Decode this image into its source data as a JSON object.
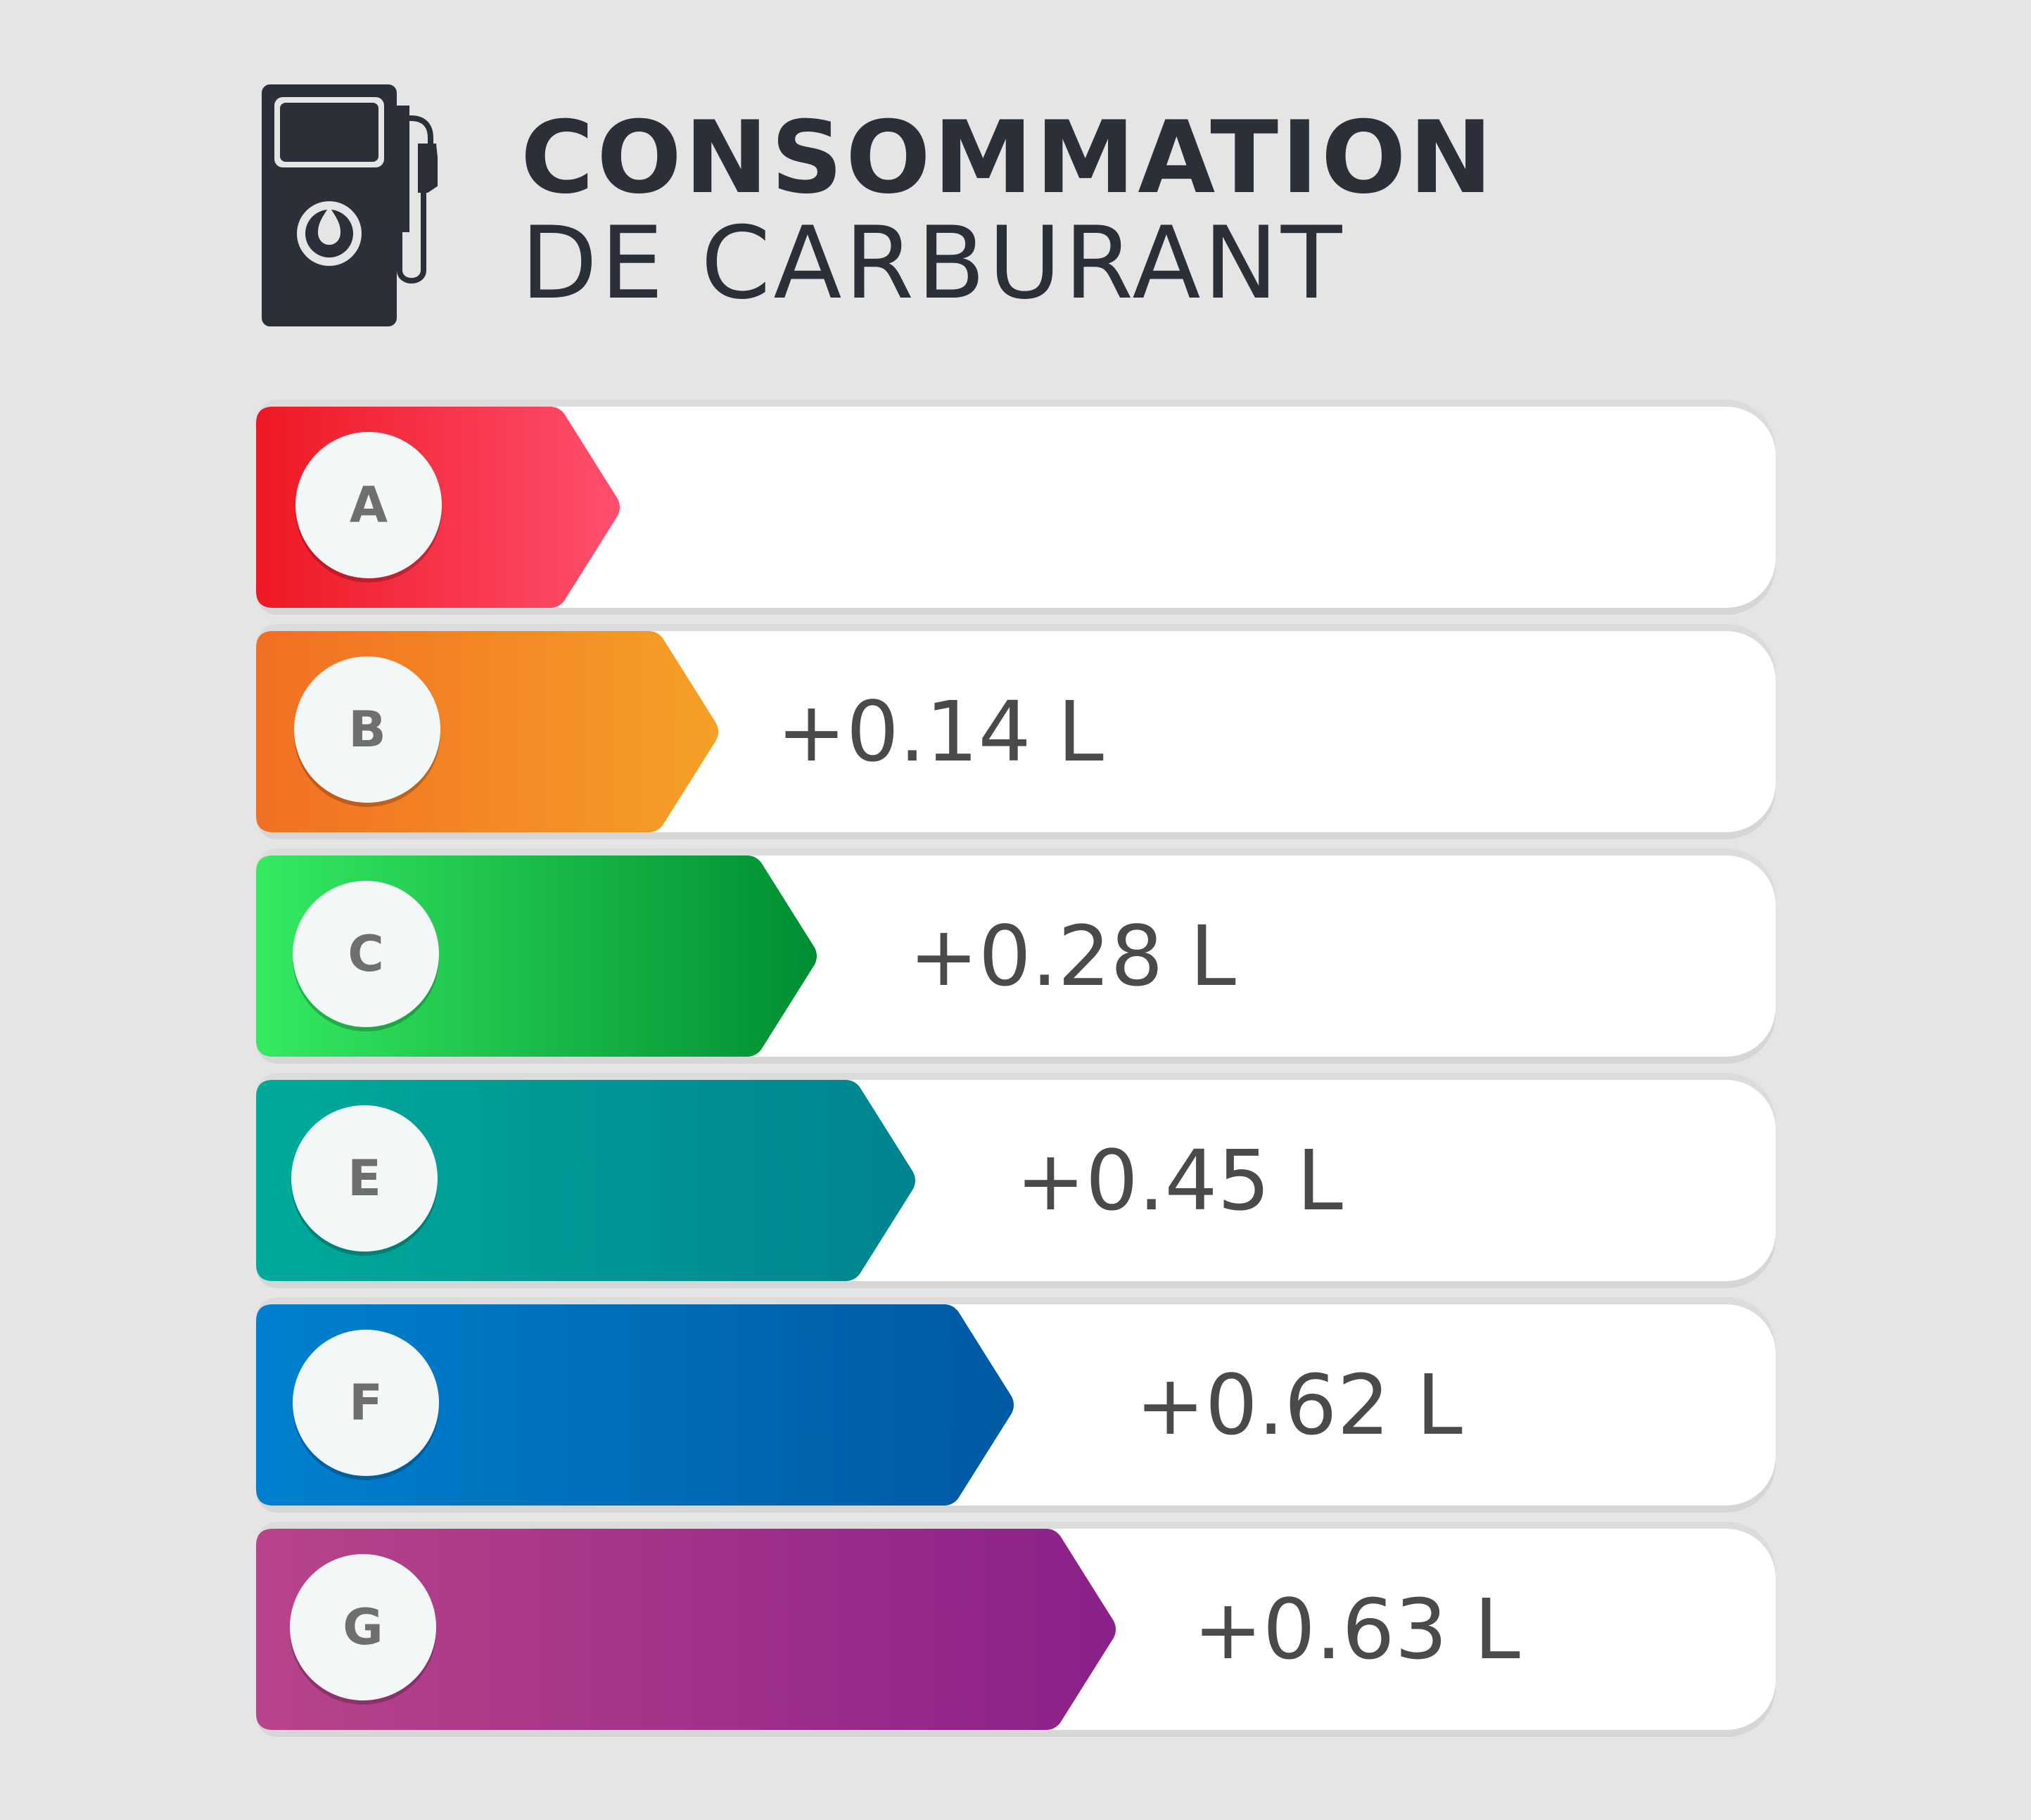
{
  "header": {
    "icon": "fuel-pump-icon",
    "title_line1": "CONSOMMATION",
    "title_line2": "DE CARBURANT"
  },
  "colors": {
    "background": "#e5e5e5",
    "title": "#2a2f38",
    "value_text": "#4a4a4a"
  },
  "ratings": [
    {
      "grade": "A",
      "value": "",
      "color_start": "#ee1823",
      "color_end": "#ff4f6e"
    },
    {
      "grade": "B",
      "value": "+0.14 L",
      "color_start": "#f26f23",
      "color_end": "#f5a027"
    },
    {
      "grade": "C",
      "value": "+0.28 L",
      "color_start": "#35ea61",
      "color_end": "#008d32"
    },
    {
      "grade": "E",
      "value": "+0.45 L",
      "color_start": "#00aa9b",
      "color_end": "#00848f"
    },
    {
      "grade": "F",
      "value": "+0.62 L",
      "color_start": "#0081cf",
      "color_end": "#0059a3"
    },
    {
      "grade": "G",
      "value": "+0.63 L",
      "color_start": "#b9448b",
      "color_end": "#8a2189"
    }
  ]
}
